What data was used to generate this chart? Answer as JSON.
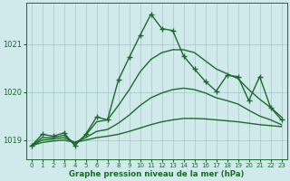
{
  "title": "Graphe pression niveau de la mer (hPa)",
  "background_color": "#d0eaec",
  "grid_color": "#aacdd2",
  "line_color": "#1a6b2a",
  "xlim": [
    -0.5,
    23.5
  ],
  "ylim": [
    1018.6,
    1021.85
  ],
  "yticks": [
    1019,
    1020,
    1021
  ],
  "xticks": [
    0,
    1,
    2,
    3,
    4,
    5,
    6,
    7,
    8,
    9,
    10,
    11,
    12,
    13,
    14,
    15,
    16,
    17,
    18,
    19,
    20,
    21,
    22,
    23
  ],
  "series": [
    {
      "x": [
        0,
        1,
        2,
        3,
        4,
        5,
        6,
        7,
        8,
        9,
        10,
        11,
        12,
        13,
        14,
        15,
        16,
        17,
        18,
        19,
        20,
        21,
        22,
        23
      ],
      "y": [
        1018.88,
        1018.95,
        1018.98,
        1019.0,
        1018.95,
        1019.0,
        1019.05,
        1019.08,
        1019.12,
        1019.18,
        1019.25,
        1019.32,
        1019.38,
        1019.42,
        1019.45,
        1019.45,
        1019.44,
        1019.42,
        1019.4,
        1019.38,
        1019.35,
        1019.32,
        1019.3,
        1019.28
      ],
      "has_markers": false,
      "linestyle": "-",
      "linewidth": 1.0
    },
    {
      "x": [
        0,
        1,
        2,
        3,
        4,
        5,
        6,
        7,
        8,
        9,
        10,
        11,
        12,
        13,
        14,
        15,
        16,
        17,
        18,
        19,
        20,
        21,
        22,
        23
      ],
      "y": [
        1018.88,
        1019.0,
        1019.02,
        1019.05,
        1018.95,
        1019.05,
        1019.18,
        1019.22,
        1019.35,
        1019.52,
        1019.72,
        1019.88,
        1019.98,
        1020.05,
        1020.08,
        1020.05,
        1019.98,
        1019.88,
        1019.82,
        1019.75,
        1019.62,
        1019.5,
        1019.42,
        1019.32
      ],
      "has_markers": false,
      "linestyle": "-",
      "linewidth": 1.0
    },
    {
      "x": [
        0,
        1,
        2,
        3,
        4,
        5,
        6,
        7,
        8,
        9,
        10,
        11,
        12,
        13,
        14,
        15,
        16,
        17,
        18,
        19,
        20,
        21,
        22,
        23
      ],
      "y": [
        1018.88,
        1019.05,
        1019.05,
        1019.1,
        1018.92,
        1019.1,
        1019.38,
        1019.42,
        1019.72,
        1020.05,
        1020.42,
        1020.68,
        1020.82,
        1020.88,
        1020.88,
        1020.82,
        1020.65,
        1020.48,
        1020.38,
        1020.28,
        1020.05,
        1019.85,
        1019.68,
        1019.48
      ],
      "has_markers": false,
      "linestyle": "-",
      "linewidth": 1.0
    },
    {
      "x": [
        0,
        1,
        2,
        3,
        4,
        5,
        6,
        7,
        8,
        9,
        10,
        11,
        12,
        13,
        14,
        15,
        16,
        17,
        18,
        19,
        20,
        21,
        22,
        23
      ],
      "y": [
        1018.88,
        1019.12,
        1019.08,
        1019.15,
        1018.88,
        1019.12,
        1019.48,
        1019.42,
        1020.25,
        1020.72,
        1021.18,
        1021.62,
        1021.32,
        1021.28,
        1020.75,
        1020.48,
        1020.22,
        1020.02,
        1020.35,
        1020.32,
        1019.82,
        1020.32,
        1019.68,
        1019.42
      ],
      "has_markers": true,
      "linestyle": "-",
      "linewidth": 1.0
    }
  ]
}
